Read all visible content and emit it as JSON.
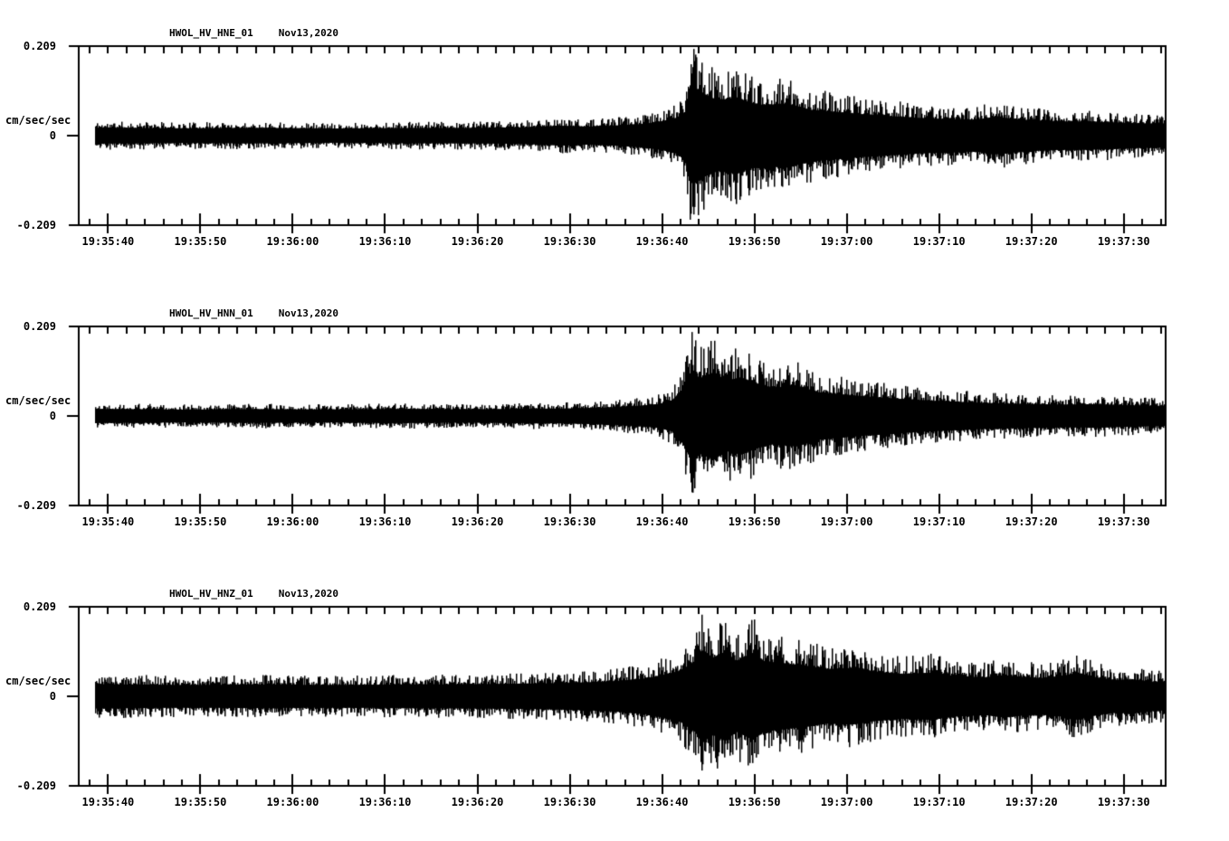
{
  "page": {
    "background_color": "#ffffff",
    "trace_color": "#000000"
  },
  "chart_data": [
    {
      "type": "line",
      "title": "HWOL_HV_HNE_01",
      "date": "Nov13,2020",
      "ylabel": "cm/sec/sec",
      "ylim": [
        -0.209,
        0.209
      ],
      "ytick_values": [
        0.209,
        0,
        -0.209
      ],
      "ytick_labels": [
        "0.209",
        "0",
        "-0.209"
      ],
      "xticks": [
        "19:35:40",
        "19:35:50",
        "19:36:00",
        "19:36:10",
        "19:36:20",
        "19:36:30",
        "19:36:40",
        "19:36:50",
        "19:37:00",
        "19:37:10",
        "19:37:20",
        "19:37:30"
      ],
      "xtick_interval_seconds": 10,
      "time_window": {
        "start": "19:35:37",
        "end": "19:37:35"
      },
      "background_noise_amplitude": 0.033,
      "event": {
        "onset_time": "19:36:42",
        "peak_time": "19:36:43",
        "peak_amplitude": 0.205,
        "peak_t": 63.4
      },
      "envelope": {
        "t_reference": "19:35:40",
        "t": [
          -1.4,
          8,
          16,
          24,
          32,
          40,
          45,
          49,
          52,
          55,
          58,
          60,
          61.5,
          62.4,
          62.9,
          63.4,
          64.5,
          66,
          68,
          69.5,
          71,
          73.5,
          76,
          79,
          82,
          85,
          88,
          91,
          94,
          96,
          98,
          100,
          103,
          106,
          109,
          112,
          114.6
        ],
        "a": [
          0.034,
          0.031,
          0.033,
          0.03,
          0.032,
          0.033,
          0.035,
          0.042,
          0.038,
          0.043,
          0.05,
          0.062,
          0.075,
          0.1,
          0.195,
          0.205,
          0.175,
          0.15,
          0.162,
          0.14,
          0.13,
          0.136,
          0.11,
          0.1,
          0.09,
          0.082,
          0.075,
          0.07,
          0.068,
          0.08,
          0.072,
          0.065,
          0.06,
          0.06,
          0.056,
          0.052,
          0.05
        ]
      }
    },
    {
      "type": "line",
      "title": "HWOL_HV_HNN_01",
      "date": "Nov13,2020",
      "ylabel": "cm/sec/sec",
      "ylim": [
        -0.209,
        0.209
      ],
      "ytick_values": [
        0.209,
        0,
        -0.209
      ],
      "ytick_labels": [
        "0.209",
        "0",
        "-0.209"
      ],
      "xticks": [
        "19:35:40",
        "19:35:50",
        "19:36:00",
        "19:36:10",
        "19:36:20",
        "19:36:30",
        "19:36:40",
        "19:36:50",
        "19:37:00",
        "19:37:10",
        "19:37:20",
        "19:37:30"
      ],
      "xtick_interval_seconds": 10,
      "time_window": {
        "start": "19:35:37",
        "end": "19:37:35"
      },
      "background_noise_amplitude": 0.029,
      "event": {
        "onset_time": "19:36:42",
        "peak_time": "19:36:43",
        "peak_amplitude": 0.2,
        "peak_t": 63.2
      },
      "envelope": {
        "t_reference": "19:35:40",
        "t": [
          -1.4,
          8,
          16,
          24,
          32,
          38,
          44,
          50,
          54,
          57,
          59.5,
          61,
          62.3,
          63.2,
          64,
          65.5,
          67,
          68.5,
          70,
          72,
          74.5,
          77,
          80,
          83,
          86,
          89,
          92,
          95,
          98,
          101,
          104,
          107,
          110,
          112,
          114.6
        ],
        "a": [
          0.03,
          0.027,
          0.029,
          0.027,
          0.03,
          0.028,
          0.03,
          0.032,
          0.036,
          0.042,
          0.05,
          0.065,
          0.12,
          0.2,
          0.16,
          0.185,
          0.15,
          0.165,
          0.14,
          0.12,
          0.13,
          0.1,
          0.09,
          0.08,
          0.072,
          0.065,
          0.06,
          0.055,
          0.052,
          0.05,
          0.048,
          0.05,
          0.046,
          0.044,
          0.042
        ]
      }
    },
    {
      "type": "line",
      "title": "HWOL_HV_HNZ_01",
      "date": "Nov13,2020",
      "ylabel": "cm/sec/sec",
      "ylim": [
        -0.209,
        0.209
      ],
      "ytick_values": [
        0.209,
        0,
        -0.209
      ],
      "ytick_labels": [
        "0.209",
        "0",
        "-0.209"
      ],
      "xticks": [
        "19:35:40",
        "19:35:50",
        "19:36:00",
        "19:36:10",
        "19:36:20",
        "19:36:30",
        "19:36:40",
        "19:36:50",
        "19:37:00",
        "19:37:10",
        "19:37:20",
        "19:37:30"
      ],
      "xtick_interval_seconds": 10,
      "time_window": {
        "start": "19:35:37",
        "end": "19:37:35"
      },
      "background_noise_amplitude": 0.05,
      "event": {
        "onset_time": "19:36:40",
        "peak_time": "19:36:44",
        "peak_amplitude": 0.195,
        "peak_t": 64.3
      },
      "envelope": {
        "t_reference": "19:35:40",
        "t": [
          -1.4,
          8,
          16,
          24,
          32,
          40,
          46,
          51,
          55,
          58,
          60,
          62,
          63.5,
          64.3,
          65.5,
          66.8,
          68,
          69.8,
          71,
          73,
          75.5,
          78,
          80.5,
          83,
          86,
          89,
          92,
          95,
          97,
          99,
          101,
          103,
          105,
          107,
          109,
          111,
          113,
          114.6
        ],
        "a": [
          0.052,
          0.048,
          0.05,
          0.048,
          0.05,
          0.052,
          0.054,
          0.058,
          0.065,
          0.075,
          0.09,
          0.11,
          0.15,
          0.195,
          0.165,
          0.19,
          0.15,
          0.185,
          0.15,
          0.14,
          0.13,
          0.115,
          0.12,
          0.105,
          0.095,
          0.1,
          0.085,
          0.08,
          0.09,
          0.082,
          0.078,
          0.085,
          0.1,
          0.08,
          0.07,
          0.072,
          0.062,
          0.06
        ]
      }
    }
  ]
}
